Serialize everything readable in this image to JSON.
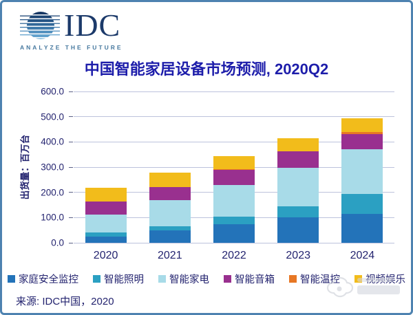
{
  "logo": {
    "text": "IDC",
    "tagline": "ANALYZE THE FUTURE"
  },
  "title": "中国智能家居设备市场预测, 2020Q2",
  "source": "来源: IDC中国，2020",
  "colors": {
    "frame_border": "#4d82b0",
    "title_text": "#1d1daa",
    "axis_text": "#23236f",
    "gridline": "#bcc2dc"
  },
  "chart_data": {
    "type": "bar",
    "stacked": true,
    "title": "中国智能家居设备市场预测, 2020Q2",
    "ylabel": "出货量：百万台",
    "categories": [
      "2020",
      "2021",
      "2022",
      "2023",
      "2024"
    ],
    "series": [
      {
        "name": "家庭安全监控",
        "color": "#2373b9",
        "values": [
          24,
          50,
          74,
          100,
          114
        ]
      },
      {
        "name": "智能照明",
        "color": "#2ba0c2",
        "values": [
          17,
          16,
          29,
          45,
          79
        ]
      },
      {
        "name": "智能家电",
        "color": "#a8dbe8",
        "values": [
          72,
          104,
          125,
          152,
          177
        ]
      },
      {
        "name": "智能音箱",
        "color": "#99308f",
        "values": [
          51,
          50,
          62,
          65,
          62
        ]
      },
      {
        "name": "智能温控",
        "color": "#e77724",
        "values": [
          1,
          1,
          1,
          2,
          6
        ]
      },
      {
        "name": "视频娱乐",
        "color": "#f2bc1b",
        "values": [
          52,
          56,
          52,
          52,
          57
        ]
      }
    ],
    "totals": [
      217,
      277,
      343,
      416,
      495
    ],
    "ylim": [
      0,
      600
    ],
    "yticks": [
      "600.0",
      "500.0",
      "400.0",
      "300.0",
      "200.0",
      "100.0",
      "0.0"
    ],
    "grid": true,
    "legend_position": "bottom"
  }
}
